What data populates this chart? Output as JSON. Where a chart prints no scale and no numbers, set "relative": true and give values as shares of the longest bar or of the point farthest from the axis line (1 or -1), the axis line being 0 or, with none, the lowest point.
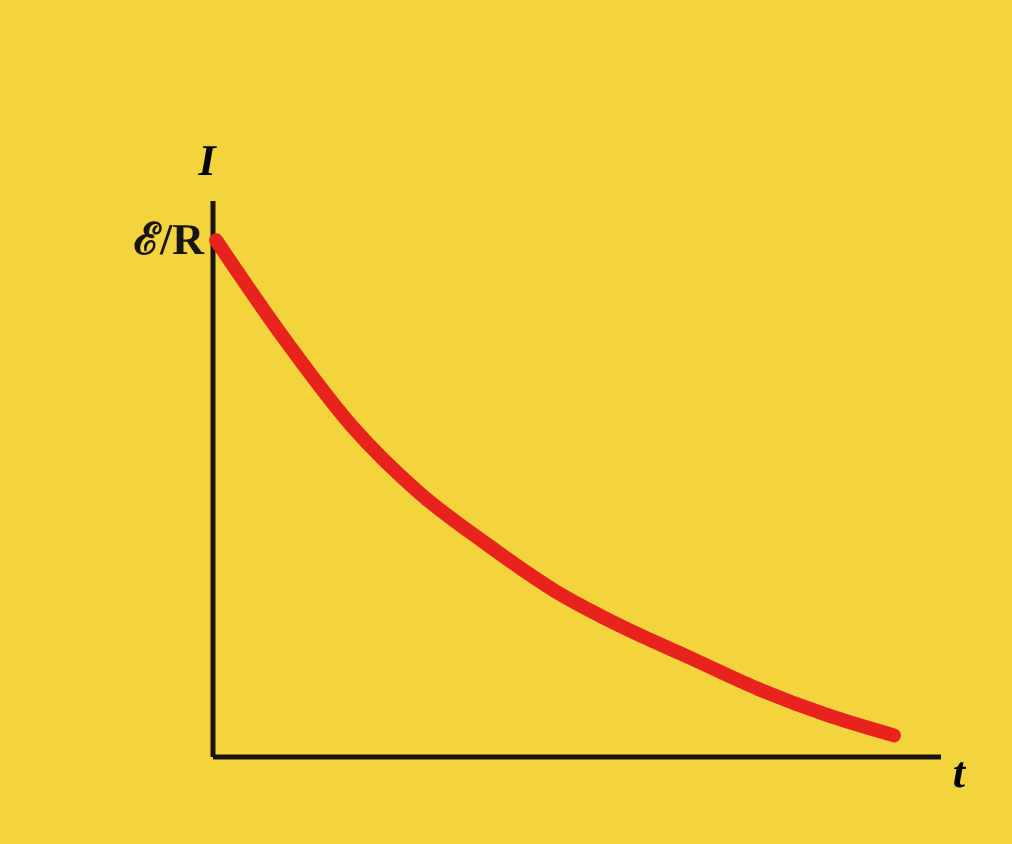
{
  "chart_data": {
    "type": "line",
    "relative": true,
    "xlabel": "t",
    "ylabel": "I",
    "categories": [
      null,
      null,
      null,
      null,
      null,
      null,
      null,
      null,
      null,
      null,
      null
    ],
    "series": [
      {
        "color": "#e8231e",
        "values": [
          1,
          0.81,
          0.64,
          0.51,
          0.41,
          0.32,
          0.25,
          0.19,
          0.13,
          0.08,
          0.04
        ]
      }
    ],
    "annotations": [
      "ℰ/R"
    ],
    "marker": "none",
    "line_style": "solid",
    "grid": false,
    "legend": false
  }
}
